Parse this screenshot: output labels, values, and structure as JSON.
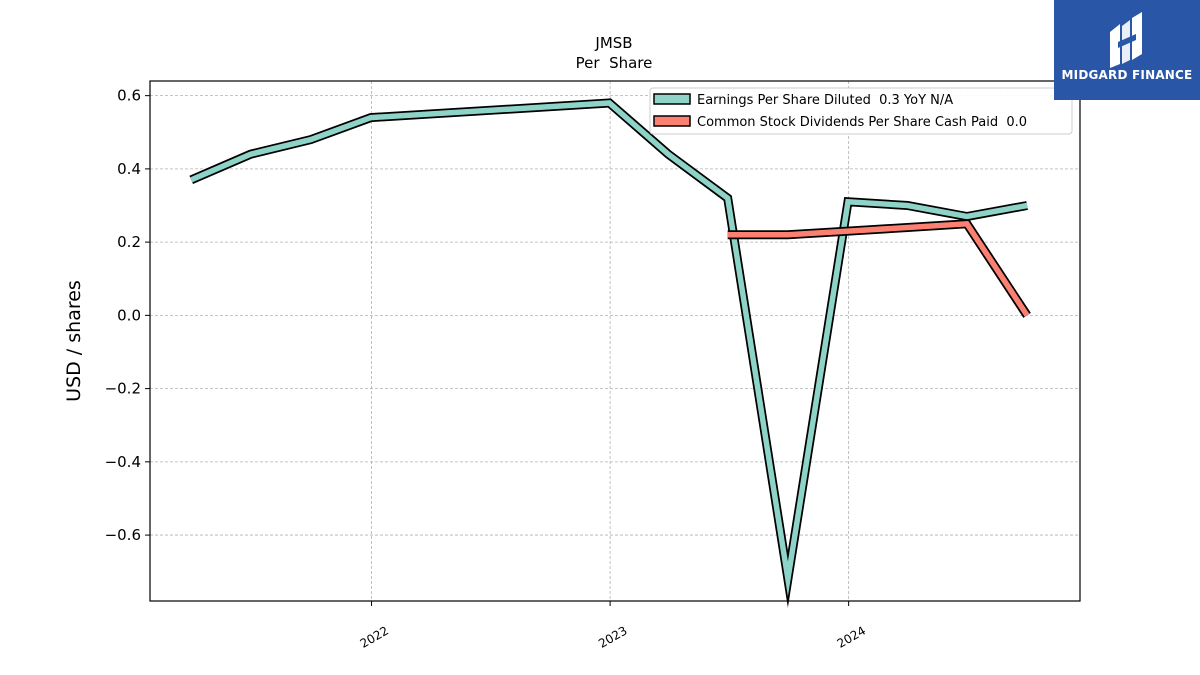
{
  "chart_data": {
    "type": "line",
    "title": "JMSB",
    "subtitle": "Per  Share",
    "ylabel": "USD / shares",
    "xlabel": "",
    "ylim": [
      -0.78,
      0.64
    ],
    "yticks": [
      0.6,
      0.4,
      0.2,
      0.0,
      -0.2,
      -0.4,
      -0.6
    ],
    "ytick_labels": [
      "0.6",
      "0.4",
      "0.2",
      "0.0",
      "−0.2",
      "−0.4",
      "−0.6"
    ],
    "xlim": [
      "2021-01-27",
      "2024-12-20"
    ],
    "xticks": [
      "2022-01-01",
      "2023-01-01",
      "2024-01-01"
    ],
    "xtick_labels": [
      "2022",
      "2023",
      "2024"
    ],
    "grid": true,
    "legend_position": "top-right",
    "series": [
      {
        "name": "Earnings Per Share Diluted  0.3 YoY N/A",
        "color": "#8dd3c7",
        "x": [
          "2021-03-31",
          "2021-06-30",
          "2021-09-30",
          "2021-12-31",
          "2022-12-31",
          "2023-03-31",
          "2023-06-30",
          "2023-09-30",
          "2023-12-31",
          "2024-03-31",
          "2024-06-30",
          "2024-09-30"
        ],
        "y": [
          0.37,
          0.44,
          0.48,
          0.54,
          0.58,
          0.44,
          0.32,
          -0.72,
          0.31,
          0.3,
          0.27,
          0.3
        ]
      },
      {
        "name": "Common Stock Dividends Per Share Cash Paid  0.0",
        "color": "#fb8072",
        "x": [
          "2023-06-30",
          "2023-09-30",
          "2023-12-31",
          "2024-03-31",
          "2024-06-30",
          "2024-09-30"
        ],
        "y": [
          0.22,
          0.22,
          0.23,
          0.24,
          0.25,
          0.0
        ]
      }
    ]
  },
  "logo": {
    "text": "MIDGARD FINANCE"
  }
}
